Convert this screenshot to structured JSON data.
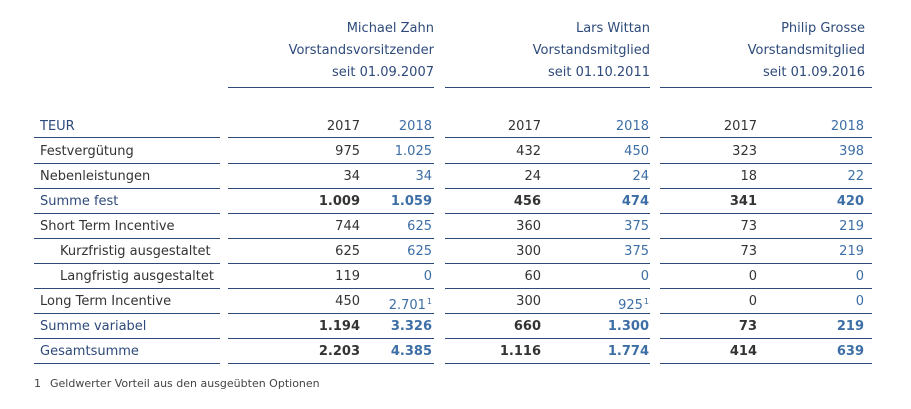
{
  "members": [
    {
      "name": "Michael Zahn",
      "role": "Vorstandsvorsitzender",
      "since": "seit 01.09.2007"
    },
    {
      "name": "Lars Wittan",
      "role": "Vorstandsmitglied",
      "since": "seit 01.10.2011"
    },
    {
      "name": "Philip Grosse",
      "role": "Vorstandsmitglied",
      "since": "seit 01.09.2016"
    }
  ],
  "table": {
    "unit_label": "TEUR",
    "years": [
      "2017",
      "2018",
      "2017",
      "2018",
      "2017",
      "2018"
    ],
    "rows": [
      {
        "label": "Festvergütung",
        "style": "normal",
        "values": [
          "975",
          "1.025",
          "432",
          "450",
          "323",
          "398"
        ]
      },
      {
        "label": "Nebenleistungen",
        "style": "normal",
        "values": [
          "34",
          "34",
          "24",
          "24",
          "18",
          "22"
        ]
      },
      {
        "label": "Summe fest",
        "style": "sum",
        "values": [
          "1.009",
          "1.059",
          "456",
          "474",
          "341",
          "420"
        ]
      },
      {
        "label": "Short Term Incentive",
        "style": "normal",
        "values": [
          "744",
          "625",
          "360",
          "375",
          "73",
          "219"
        ]
      },
      {
        "label": "Kurzfristig ausgestaltet",
        "style": "indent",
        "values": [
          "625",
          "625",
          "300",
          "375",
          "73",
          "219"
        ]
      },
      {
        "label": "Langfristig ausgestaltet",
        "style": "indent",
        "values": [
          "119",
          "0",
          "60",
          "0",
          "0",
          "0"
        ]
      },
      {
        "label": "Long Term Incentive",
        "style": "normal",
        "values": [
          "450",
          "2.701",
          "300",
          "925",
          "0",
          "0"
        ],
        "footnote_marks": [
          "",
          "1",
          "",
          "1",
          "",
          ""
        ]
      },
      {
        "label": "Summe variabel",
        "style": "sum",
        "values": [
          "1.194",
          "3.326",
          "660",
          "1.300",
          "73",
          "219"
        ]
      },
      {
        "label": "Gesamtsumme",
        "style": "sum",
        "values": [
          "2.203",
          "4.385",
          "1.116",
          "1.774",
          "414",
          "639"
        ]
      }
    ]
  },
  "footnote": {
    "number": "1",
    "text": "Geldwerter Vorteil aus den ausgeübten Optionen"
  },
  "colors": {
    "navy": "#2e4a7a",
    "blue": "#3d6ea5",
    "text": "#333333"
  }
}
